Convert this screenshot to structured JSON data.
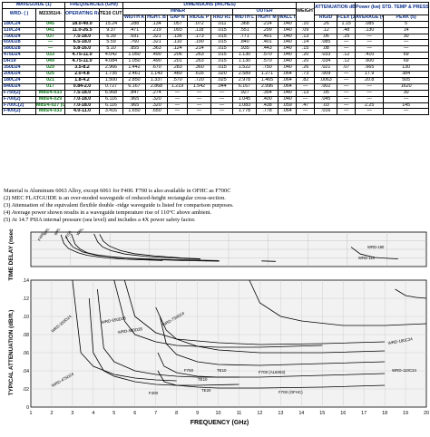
{
  "headers": {
    "waveguide": "WAVEGUIDE (1)",
    "frequencies": "FREQUENCIES (GHz)",
    "dimensions": "DIMENSIONS (INCHES)",
    "weight": "WEIGHT Lb/ft",
    "attenuation": "ATTENUATION dB/ft. MAX",
    "power": "Power (kw) STD. TEMP & PRESS.",
    "wrd": "WRD- ( )",
    "mil": "M23351/4-",
    "operating_range": "OPERATING RANGE",
    "te10": "TE10 CUT OFF",
    "inner": "INNER",
    "outer": "OUTER",
    "width_a": "WIDTH A",
    "height_b": "HGHT. B",
    "gap_n": "GAP N",
    "ridge_p": "RIDGE P",
    "rad_r1": "RAD R1",
    "width_l": "WIDTH L",
    "height_m": "HGHT M",
    "wall_t": "WALL t",
    "rigid": "RIGID",
    "flex": "FLEX (3)",
    "average": "AVERAGE (4)",
    "peak": "PEAK (5)"
  },
  "rows": [
    {
      "wrd": "180C24",
      "mil": "045",
      "range": "18.0-40.0",
      "te10": "15.24",
      "a": ".288",
      "b": ".134",
      "n": ".057",
      "p": ".072",
      "r1": ".011",
      "l": ".368",
      "m": ".214",
      "t": ".040",
      "wt": ".10",
      "rigid": ".26",
      "flex": "1.15",
      "avg": ".085",
      "peak": "5"
    },
    {
      "wrd": "110C24",
      "mil": "041",
      "range": "11.0-26.5",
      "te10": "9.37",
      "a": ".471",
      "b": ".219",
      "n": ".093",
      "p": ".118",
      "r1": ".015",
      "l": ".551",
      "m": ".299",
      "t": ".040",
      "wt": ".09",
      "rigid": ".12",
      "flex": ".48",
      "avg": ".130",
      "peak": "14"
    },
    {
      "wrd": "750D24",
      "mil": "037",
      "range": "7.5-18.0",
      "te10": "6.39",
      "a": ".691",
      "b": ".321",
      "n": ".136",
      "p": ".173",
      "r1": ".015",
      "l": ".771",
      "m": ".401",
      "t": ".040",
      "wt": ".13",
      "rigid": ".06",
      "flex": ".25",
      "avg": "—",
      "peak": "30"
    },
    {
      "wrd": "650D28",
      "mil": "—",
      "range": "6.5-18.0",
      "te10": "5.59",
      "a": ".760",
      "b": ".321",
      "n": ".110",
      "p": ".190",
      "r1": ".015",
      "l": ".840",
      "m": ".401",
      "t": ".040",
      "wt": ".14",
      "rigid": ".085",
      "flex": "—",
      "avg": "—",
      "peak": "—"
    },
    {
      "wrd": "580D28",
      "mil": "—",
      "range": "5.8-16.0",
      "te10": "5.10",
      "a": ".855",
      "b": ".363",
      "n": ".124",
      "p": ".214",
      "r1": ".015",
      "l": ".935",
      "m": ".443",
      "t": ".040",
      "wt": ".15",
      "rigid": ".08",
      "flex": "—",
      "avg": "—",
      "peak": "—"
    },
    {
      "wrd": "475D24",
      "mil": "033",
      "range": "4.75-11.0",
      "te10": "4.042",
      "a": "1.050",
      "b": ".490",
      "n": ".206",
      "p": ".263",
      "r1": ".015",
      "l": "1.130",
      "m": ".570",
      "t": ".040",
      "wt": ".20",
      "rigid": ".033",
      "flex": ".12",
      "avg": ".410",
      "peak": "69"
    },
    {
      "wrd": "DR19",
      "mil": "049",
      "range": "4.75-11.0",
      "te10": "4.084",
      "a": "1.050",
      "b": ".490",
      "n": ".201",
      "p": ".263",
      "r1": ".015",
      "l": "1.130",
      "m": ".570",
      "t": ".040",
      "wt": ".20",
      "rigid": ".034",
      "flex": ".12",
      "avg": ".600",
      "peak": "69"
    },
    {
      "wrd": "350D24",
      "mil": "029",
      "range": "3.5-8.2",
      "te10": "2.966",
      "a": "1.442",
      "b": ".670",
      "n": ".283",
      "p": ".360",
      "r1": ".015",
      "l": "1.522",
      "m": ".750",
      "t": ".040",
      "wt": ".26",
      "rigid": ".021",
      "flex": ".07",
      "avg": ".665",
      "peak": "130"
    },
    {
      "wrd": "200D24",
      "mil": "025",
      "range": "2.0-4.8",
      "te10": "1.735",
      "a": "2.461",
      "b": "1.143",
      "n": ".480",
      "p": ".616",
      "r1": ".020",
      "l": "2.589",
      "m": "1.271",
      "t": ".064",
      "wt": ".73",
      "rigid": ".009",
      "flex": "—",
      "avg": "17.9",
      "peak": "384"
    },
    {
      "wrd": "180C24",
      "mil": "021",
      "range": "1.8-4.2",
      "te10": "1.500",
      "a": "2.850",
      "b": "1.337",
      "n": ".570",
      "p": ".720",
      "r1": ".025",
      "l": "2.978",
      "m": "1.465",
      "t": ".064",
      "wt": ".82",
      "rigid": ".0063",
      "flex": "—",
      "avg": "20.8",
      "peak": "505"
    },
    {
      "wrd": "840D24",
      "mil": "017",
      "range": "0.84-2.0",
      "te10": "0.727",
      "a": "6.167",
      "b": "2.868",
      "n": "1.219",
      "p": "1.542",
      "r1": ".044",
      "l": "6.167",
      "m": "2.996",
      "t": ".064",
      "wt": "—",
      "rigid": ".002",
      "flex": "—",
      "avg": "—",
      "peak": "1620"
    },
    {
      "wrd": "F750(2)",
      "mil": "M85/4-033",
      "range": "7.5-18.0",
      "te10": "6.968",
      "a": ".847",
      "b": ".274",
      "n": "—",
      "p": "—",
      "r1": "—",
      "l": ".927",
      "m": ".354",
      "t": ".040",
      "wt": ".13",
      "rigid": ".05",
      "flex": "—",
      "avg": "—",
      "peak": "30"
    },
    {
      "wrd": "F700(2)",
      "mil": "M85/4-029",
      "range": "7.0-18.0",
      "te10": "6.116",
      "a": ".965",
      "b": ".320",
      "n": "—",
      "p": "—",
      "r1": "—",
      "l": "1.045",
      "m": ".400",
      "t": ".040",
      "wt": "—",
      "rigid": ".045",
      "flex": "—",
      "avg": "—",
      "peak": "—"
    },
    {
      "wrd": "F700C(2)",
      "mil": "M85/4-027 (OFHC)",
      "range": "7.0-18.0",
      "te10": "6.116",
      "a": ".965",
      "b": ".320",
      "n": "—",
      "p": "—",
      "r1": "—",
      "l": "1.083",
      "m": ".438",
      "t": ".059",
      "wt": ".47",
      "rigid": ".03",
      "flex": "—",
      "avg": "2.25",
      "peak": "145"
    },
    {
      "wrd": "F400(2)",
      "mil": "M85/4-033",
      "range": "4.0-11.0",
      "te10": "3.416",
      "a": "1.650",
      "b": ".650",
      "n": "—",
      "p": "—",
      "r1": "—",
      "l": "1.778",
      "m": ".778",
      "t": ".064",
      "wt": "—",
      "rigid": ".016",
      "flex": "—",
      "avg": "—",
      "peak": "—"
    }
  ],
  "notes": [
    "Material is Aluminum 6063 Alloy, except 6061 for F400. F700 is also available in OFHC as F700C",
    "(2) MEC FLATGUIDE is an over-moded waveguide of reduced-height rectangular cross-section.",
    "(3) Attenuation of the equivalent flexible double -ridge waveguide is listed for comparison purposes.",
    "(4) Average power shown results in a waveguide temperature rise of 110°C above ambient.",
    "(5) At 14.7 PSIA internal pressure (sea level) and includes a 4X power safety factor."
  ],
  "chart_data": [
    {
      "type": "line",
      "ylabel": "TIME DELAY (nsec./ft.)",
      "xlim": [
        0,
        42
      ],
      "ylim": [
        0,
        8
      ],
      "series": [
        {
          "name": "WRD-475",
          "x": [
            4.3,
            4.7,
            5.2,
            6,
            7,
            8.5,
            10,
            12,
            15,
            20
          ],
          "y": [
            7.6,
            5.2,
            4.1,
            3.2,
            2.7,
            2.3,
            2.0,
            1.8,
            1.6,
            1.4
          ]
        },
        {
          "name": "WRD-350",
          "x": [
            3.2,
            3.5,
            4,
            5,
            6,
            8,
            10,
            14
          ],
          "y": [
            7.4,
            5.4,
            4.2,
            3.2,
            2.6,
            2.0,
            1.7,
            1.4
          ]
        },
        {
          "name": "WRD-750",
          "x": [
            6.7,
            7.1,
            7.6,
            8.5,
            10,
            12,
            15,
            18
          ],
          "y": [
            7.6,
            5.7,
            4.6,
            3.7,
            2.9,
            2.4,
            2.0,
            1.7
          ]
        },
        {
          "name": "F400",
          "x": [
            3.7,
            4,
            4.5,
            5.5,
            7,
            9,
            12,
            16,
            20
          ],
          "y": [
            7.2,
            5.8,
            4.5,
            3.4,
            2.6,
            2.1,
            1.7,
            1.4,
            1.25
          ]
        },
        {
          "name": "F750",
          "x": [
            7.3,
            7.7,
            8.3,
            9.5,
            11,
            13,
            16,
            18
          ],
          "y": [
            7.5,
            5.9,
            4.8,
            3.7,
            3.0,
            2.5,
            2.0,
            1.8
          ]
        },
        {
          "name": "WRD-180",
          "x": [
            34,
            35,
            36.5,
            38,
            39
          ],
          "y": [
            4.5,
            2.9,
            2.1,
            1.9,
            1.8
          ]
        },
        {
          "name": "WRD-110",
          "x": [
            24.5,
            26
          ],
          "y": [
            1.3,
            1.2
          ]
        }
      ],
      "annotations": [
        "WRD-350",
        "WRD-475",
        "F400",
        "WRD-750",
        "F750",
        "WRD-180",
        "WRD-110"
      ]
    },
    {
      "type": "line",
      "xlabel": "FREQUENCY (GHz)",
      "ylabel": "TYPICAL ATTENUATION (dB/ft.)",
      "xlim": [
        1,
        20
      ],
      "ylim": [
        0,
        0.14
      ],
      "yticks": [
        ".14",
        ".12",
        ".10",
        ".08",
        ".06",
        ".04",
        ".02",
        "0"
      ],
      "xticks": [
        "1",
        "2",
        "3",
        "4",
        "5",
        "6",
        "7",
        "8",
        "9",
        "10",
        "11",
        "12",
        "13",
        "14",
        "15",
        "16",
        "17",
        "18",
        "19",
        "20"
      ],
      "series": [
        {
          "name": "WRD-350D24",
          "x": [
            3,
            3.4,
            4,
            5,
            6,
            7,
            8
          ],
          "y": [
            0.14,
            0.06,
            0.045,
            0.036,
            0.032,
            0.03,
            0.029
          ]
        },
        {
          "name": "WRD-650D28",
          "x": [
            5.5,
            6,
            7,
            8,
            10,
            12,
            15,
            18
          ],
          "y": [
            0.14,
            0.1,
            0.082,
            0.075,
            0.071,
            0.069,
            0.07,
            0.072
          ]
        },
        {
          "name": "WRD-580D28",
          "x": [
            5,
            5.5,
            6,
            7,
            8,
            10,
            12,
            15
          ],
          "y": [
            0.14,
            0.095,
            0.08,
            0.072,
            0.068,
            0.066,
            0.066,
            0.068
          ]
        },
        {
          "name": "WRD-750D24",
          "x": [
            7,
            7.5,
            8,
            9,
            10,
            12,
            15,
            18
          ],
          "y": [
            0.11,
            0.085,
            0.075,
            0.067,
            0.063,
            0.06,
            0.06,
            0.062
          ]
        },
        {
          "name": "WRD-475D24",
          "x": [
            4.2,
            4.5,
            5,
            6,
            7,
            8,
            9,
            11
          ],
          "y": [
            0.13,
            0.065,
            0.05,
            0.04,
            0.036,
            0.034,
            0.033,
            0.033
          ]
        },
        {
          "name": "F750",
          "x": [
            7.2,
            7.5,
            8,
            9,
            10,
            12,
            15,
            18
          ],
          "y": [
            0.1,
            0.07,
            0.058,
            0.05,
            0.047,
            0.046,
            0.048,
            0.05
          ]
        },
        {
          "name": "F400",
          "x": [
            3.8,
            4,
            4.5,
            5,
            6,
            7,
            8,
            9,
            11
          ],
          "y": [
            0.12,
            0.06,
            0.04,
            0.034,
            0.028,
            0.025,
            0.024,
            0.024,
            0.025
          ]
        },
        {
          "name": "F700 (AL6063)",
          "x": [
            7.1,
            7.4,
            8,
            9,
            10,
            12,
            15,
            18
          ],
          "y": [
            0.06,
            0.045,
            0.038,
            0.034,
            0.033,
            0.033,
            0.035,
            0.037
          ]
        },
        {
          "name": "F700 (OFHC)",
          "x": [
            7.1,
            7.4,
            8,
            9,
            10,
            12,
            15,
            18
          ],
          "y": [
            0.04,
            0.028,
            0.024,
            0.022,
            0.021,
            0.021,
            0.022,
            0.024
          ]
        },
        {
          "name": "WRD-180C24",
          "x": [
            18.5,
            19,
            19.5,
            20
          ],
          "y": [
            0.13,
            0.123,
            0.121,
            0.12
          ]
        },
        {
          "name": "WRD-110C24",
          "x": [
            11.5,
            12,
            13,
            14,
            16,
            18,
            20
          ],
          "y": [
            0.14,
            0.115,
            0.1,
            0.095,
            0.09,
            0.09,
            0.092
          ]
        }
      ],
      "annotations": [
        "WRD-650D28",
        "WRD-580D28",
        "WRD-750D24",
        "WRD-350D24",
        "WRD-475D24",
        "F750",
        "TE10",
        "TE20",
        "TE10",
        "F700 (AL6063)",
        "F700 (OFHC)",
        "F400",
        "WRD-180C24",
        "WRD-110C24"
      ]
    }
  ]
}
